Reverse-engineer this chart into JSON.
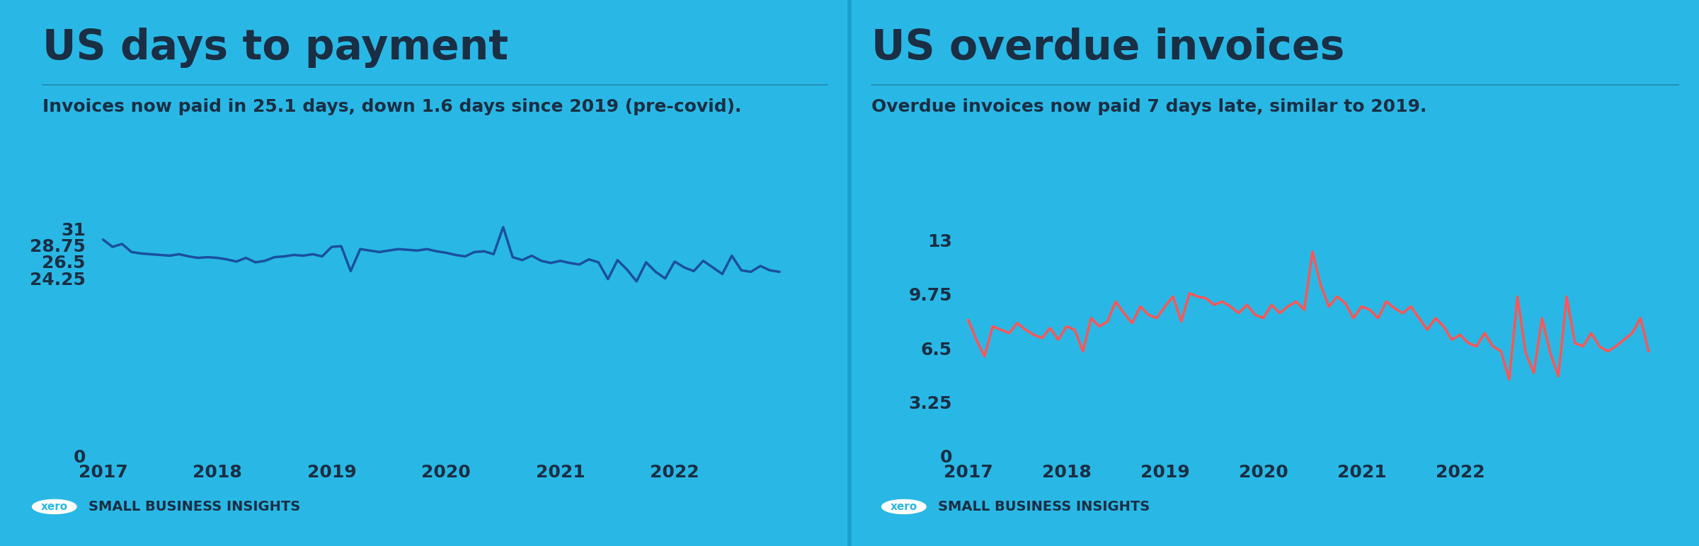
{
  "background_color": "#29b8e5",
  "divider_color": "#18a0cb",
  "text_dark": "#1a2e44",
  "panel1": {
    "title": "US days to payment",
    "subtitle": "Invoices now paid in 25.1 days, down 1.6 days since 2019 (pre-covid).",
    "line_color": "#1a4fa0",
    "yticks": [
      0,
      24.25,
      26.5,
      28.75,
      31
    ],
    "ytick_labels": [
      "0",
      "24.25",
      "26.5",
      "28.75",
      "31"
    ],
    "ylim": [
      0,
      33.5
    ],
    "xtick_labels": [
      "2017",
      "2018",
      "2019",
      "2020",
      "2021",
      "2022"
    ],
    "data": [
      29.5,
      28.5,
      28.9,
      27.8,
      27.6,
      27.5,
      27.4,
      27.3,
      27.5,
      27.2,
      27.0,
      27.1,
      27.0,
      26.8,
      26.5,
      27.0,
      26.4,
      26.6,
      27.1,
      27.2,
      27.4,
      27.3,
      27.5,
      27.2,
      28.5,
      28.6,
      25.2,
      28.2,
      28.0,
      27.8,
      28.0,
      28.2,
      28.1,
      28.0,
      28.2,
      27.9,
      27.7,
      27.4,
      27.2,
      27.8,
      27.9,
      27.5,
      31.2,
      27.1,
      26.7,
      27.3,
      26.6,
      26.3,
      26.6,
      26.3,
      26.1,
      26.8,
      26.4,
      24.1,
      26.7,
      25.4,
      23.8,
      26.4,
      25.1,
      24.2,
      26.5,
      25.7,
      25.2,
      26.6,
      25.7,
      24.8,
      27.3,
      25.3,
      25.1,
      25.9,
      25.3,
      25.1
    ]
  },
  "panel2": {
    "title": "US overdue invoices",
    "subtitle": "Overdue invoices now paid 7 days late, similar to 2019.",
    "line_color": "#ff5555",
    "yticks": [
      0,
      3.25,
      6.5,
      9.75,
      13
    ],
    "ytick_labels": [
      "0",
      "3.25",
      "6.5",
      "9.75",
      "13"
    ],
    "ylim": [
      0,
      14.8
    ],
    "xtick_labels": [
      "2017",
      "2018",
      "2019",
      "2020",
      "2021",
      "2022"
    ],
    "data": [
      8.2,
      7.0,
      6.0,
      7.8,
      7.6,
      7.4,
      8.0,
      7.6,
      7.3,
      7.1,
      7.7,
      7.0,
      7.8,
      7.6,
      6.3,
      8.3,
      7.8,
      8.1,
      9.3,
      8.6,
      8.0,
      9.0,
      8.5,
      8.3,
      9.0,
      9.6,
      8.1,
      9.8,
      9.6,
      9.5,
      9.1,
      9.3,
      9.0,
      8.6,
      9.1,
      8.5,
      8.3,
      9.1,
      8.6,
      9.0,
      9.3,
      8.8,
      12.3,
      10.3,
      9.0,
      9.6,
      9.2,
      8.3,
      9.0,
      8.8,
      8.3,
      9.3,
      8.9,
      8.6,
      9.0,
      8.3,
      7.6,
      8.3,
      7.8,
      7.0,
      7.3,
      6.8,
      6.6,
      7.4,
      6.6,
      6.3,
      4.6,
      9.6,
      6.2,
      5.0,
      8.3,
      6.2,
      4.8,
      9.6,
      6.8,
      6.6,
      7.4,
      6.6,
      6.3,
      6.6,
      7.0,
      7.4,
      8.3,
      6.3
    ]
  },
  "footer_text": "SMALL BUSINESS INSIGHTS",
  "line_width": 2.5
}
